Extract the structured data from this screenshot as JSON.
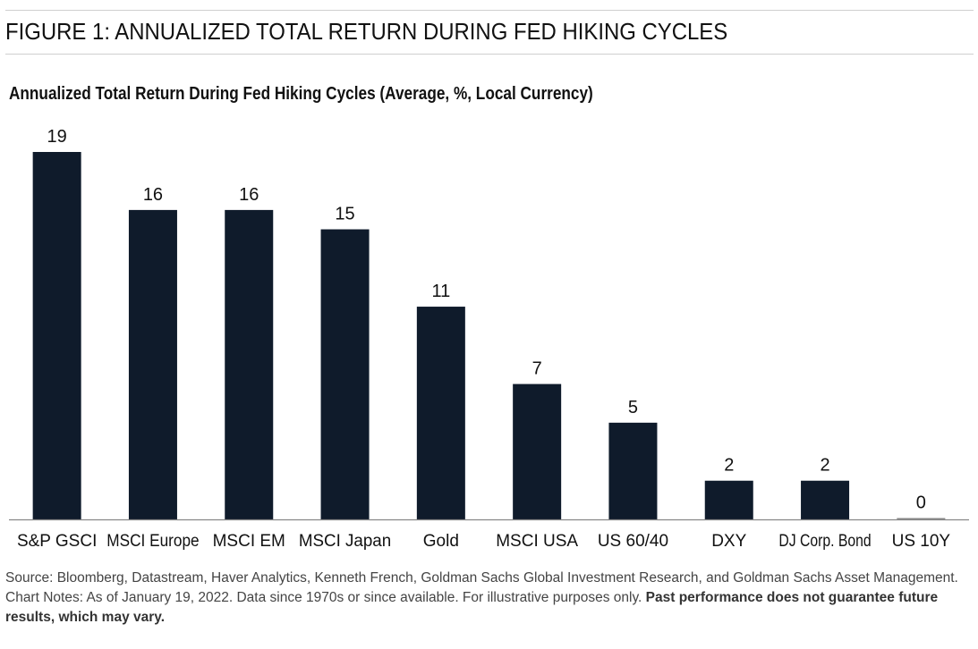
{
  "figure_title": "FIGURE 1: ANNUALIZED TOTAL RETURN DURING FED HIKING CYCLES",
  "chart_data": {
    "type": "bar",
    "title": "Annualized Total Return During Fed Hiking Cycles (Average, %, Local Currency)",
    "categories": [
      "S&P GSCI",
      "MSCI Europe",
      "MSCI EM",
      "MSCI Japan",
      "Gold",
      "MSCI USA",
      "US 60/40",
      "DXY",
      "DJ Corp. Bond",
      "US 10Y"
    ],
    "values": [
      19,
      16,
      16,
      15,
      11,
      7,
      5,
      2,
      2,
      0
    ],
    "data_labels": [
      "19",
      "16",
      "16",
      "15",
      "11",
      "7",
      "5",
      "2",
      "2",
      "0"
    ],
    "xlabel": "",
    "ylabel": "",
    "ylim": [
      0,
      19
    ],
    "grid": false,
    "legend": "none",
    "bar_color": "#0f1b2b",
    "baseline_color": "#888888"
  },
  "footnote": {
    "text": "Source: Bloomberg, Datastream, Haver Analytics, Kenneth French, Goldman Sachs Global Investment Research, and Goldman Sachs Asset Management. Chart Notes: As of January 19, 2022. Data since 1970s or since available. For illustrative purposes only. ",
    "bold": "Past performance does not guarantee future results, which may vary."
  }
}
